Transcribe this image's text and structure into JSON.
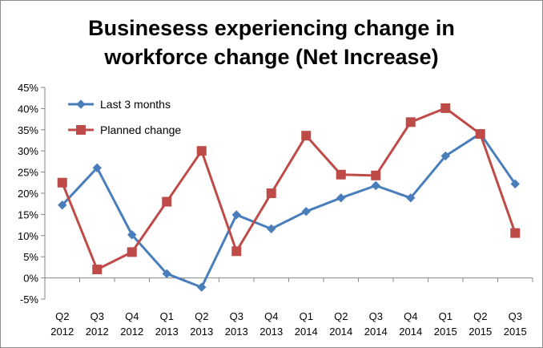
{
  "chart_data": {
    "type": "line",
    "title_line1": "Businesess experiencing change in",
    "title_line2": "workforce change (Net Increase)",
    "xlabel": "",
    "ylabel": "",
    "ylim": [
      -5,
      45
    ],
    "yticks": [
      "-5%",
      "0%",
      "5%",
      "10%",
      "15%",
      "20%",
      "25%",
      "30%",
      "35%",
      "40%",
      "45%"
    ],
    "categories": [
      {
        "quarter": "Q2",
        "year": "2012"
      },
      {
        "quarter": "Q3",
        "year": "2012"
      },
      {
        "quarter": "Q4",
        "year": "2012"
      },
      {
        "quarter": "Q1",
        "year": "2013"
      },
      {
        "quarter": "Q2",
        "year": "2013"
      },
      {
        "quarter": "Q3",
        "year": "2013"
      },
      {
        "quarter": "Q4",
        "year": "2013"
      },
      {
        "quarter": "Q1",
        "year": "2014"
      },
      {
        "quarter": "Q2",
        "year": "2014"
      },
      {
        "quarter": "Q3",
        "year": "2014"
      },
      {
        "quarter": "Q4",
        "year": "2014"
      },
      {
        "quarter": "Q1",
        "year": "2015"
      },
      {
        "quarter": "Q2",
        "year": "2015"
      },
      {
        "quarter": "Q3",
        "year": "2015"
      }
    ],
    "series": [
      {
        "name": "Last 3 months",
        "color": "#4a7ebb",
        "marker": "diamond",
        "values": [
          17.2,
          26.0,
          10.2,
          1.0,
          -2.2,
          14.9,
          11.6,
          15.7,
          18.9,
          21.8,
          18.9,
          28.8,
          34.1,
          22.2
        ]
      },
      {
        "name": "Planned change",
        "color": "#be4b48",
        "marker": "square",
        "values": [
          22.5,
          2.0,
          6.1,
          18.0,
          30.0,
          6.3,
          20.0,
          33.6,
          24.4,
          24.2,
          36.8,
          40.1,
          34.0,
          10.6
        ]
      }
    ],
    "grid": false,
    "legend": "top-left"
  }
}
